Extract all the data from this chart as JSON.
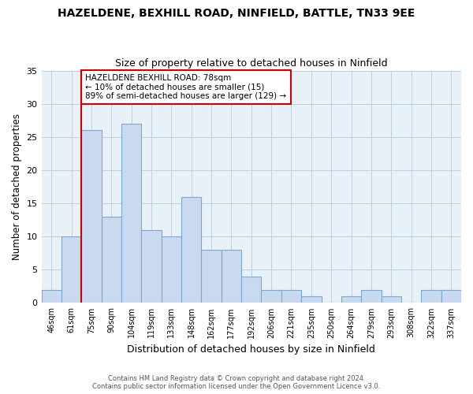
{
  "title": "HAZELDENE, BEXHILL ROAD, NINFIELD, BATTLE, TN33 9EE",
  "subtitle": "Size of property relative to detached houses in Ninfield",
  "xlabel": "Distribution of detached houses by size in Ninfield",
  "ylabel": "Number of detached properties",
  "bar_labels": [
    "46sqm",
    "61sqm",
    "75sqm",
    "90sqm",
    "104sqm",
    "119sqm",
    "133sqm",
    "148sqm",
    "162sqm",
    "177sqm",
    "192sqm",
    "206sqm",
    "221sqm",
    "235sqm",
    "250sqm",
    "264sqm",
    "279sqm",
    "293sqm",
    "308sqm",
    "322sqm",
    "337sqm"
  ],
  "bar_values": [
    2,
    10,
    26,
    13,
    27,
    11,
    10,
    16,
    8,
    8,
    4,
    2,
    2,
    1,
    0,
    1,
    2,
    1,
    0,
    2,
    2
  ],
  "bar_color": "#c8d9f0",
  "bar_edge_color": "#7aaad0",
  "vline_x_index": 2,
  "vline_color": "#cc0000",
  "annotation_text": "HAZELDENE BEXHILL ROAD: 78sqm\n← 10% of detached houses are smaller (15)\n89% of semi-detached houses are larger (129) →",
  "annotation_box_color": "#ffffff",
  "annotation_box_edge": "#cc0000",
  "plot_bg_color": "#e8f0f8",
  "ylim": [
    0,
    35
  ],
  "yticks": [
    0,
    5,
    10,
    15,
    20,
    25,
    30,
    35
  ],
  "footer_line1": "Contains HM Land Registry data © Crown copyright and database right 2024.",
  "footer_line2": "Contains public sector information licensed under the Open Government Licence v3.0.",
  "background_color": "#ffffff",
  "grid_color": "#c0cfe0"
}
